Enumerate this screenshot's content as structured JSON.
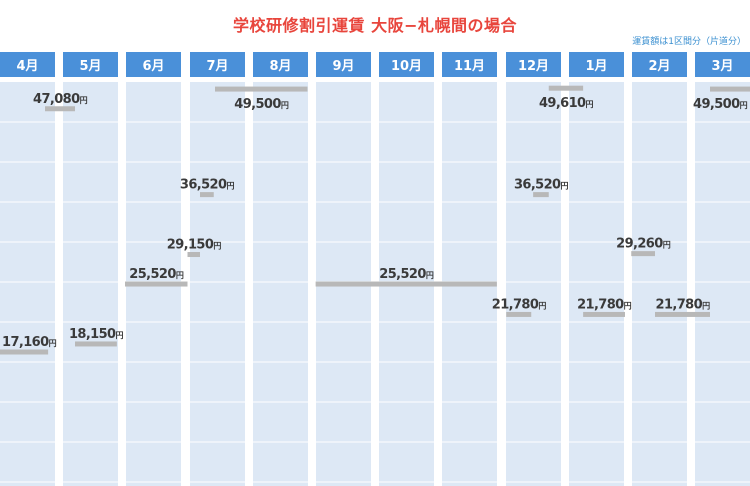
{
  "chart_data": {
    "type": "line",
    "title": "学校研修割引運賃 大阪−札幌間の場合",
    "subtitle": "運賃額は1区間分（片道分）",
    "categories": [
      "4月",
      "5月",
      "6月",
      "7月",
      "8月",
      "9月",
      "10月",
      "11月",
      "12月",
      "1月",
      "2月",
      "3月"
    ],
    "unit": "円",
    "x_unit_note": "from/to are fractional month indices (0 = start of 4月)",
    "grid": true,
    "colors": {
      "title": "#e8453c",
      "header": "#4a90d9",
      "column": "#dde8f5",
      "bar": "#b8b8b8",
      "label": "#3a3a3a",
      "lowest": "#e8453c",
      "highest": "#3a8fd0",
      "note": "#3a8fd0"
    },
    "segments": [
      {
        "from": 0.0,
        "to": 0.77,
        "value": 17160,
        "label": "17,160",
        "highlight": "lowest"
      },
      {
        "from": 0.72,
        "to": 1.2,
        "value": 47080,
        "label": "47,080"
      },
      {
        "from": 1.2,
        "to": 1.87,
        "value": 18150,
        "label": "18,150"
      },
      {
        "from": 2.0,
        "to": 3.0,
        "value": 25520,
        "label": "25,520"
      },
      {
        "from": 3.0,
        "to": 3.2,
        "value": 29150,
        "label": "29,150"
      },
      {
        "from": 3.2,
        "to": 3.42,
        "value": 36520,
        "label": "36,520"
      },
      {
        "from": 3.44,
        "to": 4.92,
        "value": 49500,
        "label": "49,500"
      },
      {
        "from": 5.05,
        "to": 7.95,
        "value": 25520,
        "label": "25,520"
      },
      {
        "from": 8.1,
        "to": 8.5,
        "value": 21780,
        "label": "21,780"
      },
      {
        "from": 8.53,
        "to": 8.78,
        "value": 36520,
        "label": "36,520"
      },
      {
        "from": 8.78,
        "to": 9.33,
        "value": 49610,
        "label": "49,610",
        "highlight": "highest"
      },
      {
        "from": 9.33,
        "to": 10.0,
        "value": 21780,
        "label": "21,780"
      },
      {
        "from": 10.1,
        "to": 10.48,
        "value": 29260,
        "label": "29,260"
      },
      {
        "from": 10.48,
        "to": 11.36,
        "value": 21780,
        "label": "21,780"
      },
      {
        "from": 11.36,
        "to": 12.0,
        "value": 49500,
        "label": "49,500"
      }
    ]
  }
}
